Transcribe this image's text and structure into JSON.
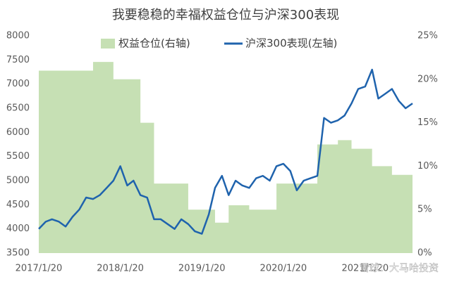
{
  "chart_data": {
    "type": "area_line",
    "title": "我要稳稳的幸福权益仓位与沪深300表现",
    "annotation": "雪球：大马哈投资",
    "x": [
      "2017/1/20",
      "2017/2/20",
      "2017/3/20",
      "2017/4/20",
      "2017/5/20",
      "2017/6/20",
      "2017/7/20",
      "2017/8/20",
      "2017/9/20",
      "2017/10/20",
      "2017/11/20",
      "2017/12/20",
      "2018/1/20",
      "2018/2/20",
      "2018/3/20",
      "2018/4/20",
      "2018/5/20",
      "2018/6/20",
      "2018/7/20",
      "2018/8/20",
      "2018/9/20",
      "2018/10/20",
      "2018/11/20",
      "2018/12/20",
      "2019/1/20",
      "2019/2/20",
      "2019/3/20",
      "2019/4/20",
      "2019/5/20",
      "2019/6/20",
      "2019/7/20",
      "2019/8/20",
      "2019/9/20",
      "2019/10/20",
      "2019/11/20",
      "2019/12/20",
      "2020/1/20",
      "2020/2/20",
      "2020/3/20",
      "2020/4/20",
      "2020/5/20",
      "2020/6/20",
      "2020/7/20",
      "2020/8/20",
      "2020/9/20",
      "2020/10/20",
      "2020/11/20",
      "2020/12/20",
      "2021/1/20",
      "2021/2/20",
      "2021/3/20",
      "2021/4/20",
      "2021/5/20",
      "2021/6/20",
      "2021/7/20",
      "2021/8/20"
    ],
    "xlim": [
      "2017/1/20",
      "2021/8/20"
    ],
    "xticks": [
      "2017/1/20",
      "2018/1/20",
      "2019/1/20",
      "2020/1/20",
      "2021/1/20"
    ],
    "ylim": [
      3500,
      8000
    ],
    "yticks": [
      3500,
      4000,
      4500,
      5000,
      5500,
      6000,
      6500,
      7000,
      7500,
      8000
    ],
    "y2lim": [
      0,
      25
    ],
    "y2ticks": [
      {
        "value": 0,
        "label": "0%"
      },
      {
        "value": 5,
        "label": "5%"
      },
      {
        "value": 10,
        "label": "10%"
      },
      {
        "value": 15,
        "label": "15%"
      },
      {
        "value": 20,
        "label": "20%"
      },
      {
        "value": 25,
        "label": "25%"
      }
    ],
    "series": [
      {
        "name": "权益仓位(右轴)",
        "color": "#c6e0b4",
        "axis": "y2",
        "kind": "area",
        "values": [
          21,
          21,
          21,
          21,
          21,
          21,
          21,
          21,
          22,
          22,
          22,
          20,
          20,
          20,
          20,
          15,
          15,
          8,
          8,
          8,
          8,
          8,
          5,
          5,
          5,
          5,
          3.5,
          3.5,
          5.5,
          5.5,
          5.5,
          5,
          5,
          5,
          5,
          8,
          8,
          8,
          8,
          8,
          8,
          12.5,
          12.5,
          12.5,
          13,
          13,
          12,
          12,
          12,
          10,
          10,
          10,
          9,
          9,
          9,
          10
        ]
      },
      {
        "name": "沪深300表现(左轴)",
        "color": "#1f63ad",
        "kind": "line",
        "values": [
          4000,
          4150,
          4200,
          4150,
          4050,
          4250,
          4400,
          4650,
          4620,
          4700,
          4850,
          5000,
          5300,
          4900,
          5000,
          4700,
          4650,
          4200,
          4200,
          4100,
          4000,
          4200,
          4100,
          3950,
          3900,
          4300,
          4850,
          5100,
          4700,
          5000,
          4900,
          4850,
          5050,
          5100,
          5000,
          5300,
          5350,
          5200,
          4800,
          5000,
          5050,
          5100,
          6300,
          6200,
          6250,
          6350,
          6600,
          6900,
          6950,
          7300,
          6700,
          6800,
          6900,
          6650,
          6500,
          6600
        ]
      }
    ]
  }
}
